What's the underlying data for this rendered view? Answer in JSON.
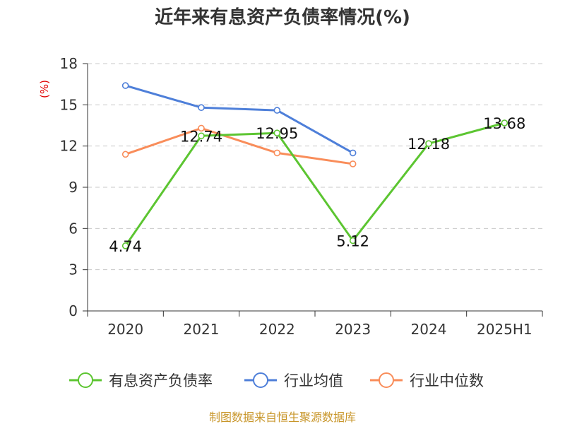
{
  "chart_data": {
    "type": "line",
    "title": "近年来有息资产负债率情况(%)",
    "ylabel": "(%)",
    "xlabel": "",
    "categories": [
      "2020",
      "2021",
      "2022",
      "2023",
      "2024",
      "2025H1"
    ],
    "yticks": [
      "0",
      "3",
      "6",
      "9",
      "12",
      "15",
      "18"
    ],
    "ylim": [
      0,
      18
    ],
    "grid": true,
    "legend_position": "bottom",
    "series": [
      {
        "name": "有息资产负债率",
        "color": "#5cc531",
        "values": [
          4.74,
          12.74,
          12.95,
          5.12,
          12.18,
          13.68
        ],
        "labels": [
          "4.74",
          "12.74",
          "12.95",
          "5.12",
          "12.18",
          "13.68"
        ]
      },
      {
        "name": "行业均值",
        "color": "#4e7fd9",
        "values": [
          16.4,
          14.8,
          14.6,
          11.5,
          null,
          null
        ]
      },
      {
        "name": "行业中位数",
        "color": "#f98d5a",
        "values": [
          11.4,
          13.3,
          11.5,
          10.7,
          null,
          null
        ]
      }
    ]
  },
  "source": "制图数据来自恒生聚源数据库"
}
